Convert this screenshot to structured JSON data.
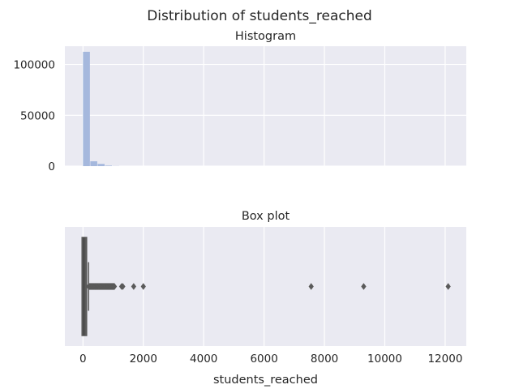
{
  "chart_data": [
    {
      "type": "histogram",
      "suptitle": "Distribution of students_reached",
      "title": "Histogram",
      "xlabel": "",
      "ylabel": "",
      "xlim": [
        -600,
        12700
      ],
      "ylim": [
        0,
        118000
      ],
      "yticks": [
        0,
        50000,
        100000
      ],
      "ytick_labels": [
        "0",
        "50000",
        "100000"
      ],
      "xticks": [
        0,
        2000,
        4000,
        6000,
        8000,
        10000,
        12000
      ],
      "xtick_labels_visible": false,
      "bin_width": 243,
      "bins": [
        {
          "x0": 0,
          "x1": 243,
          "count": 112500
        },
        {
          "x0": 243,
          "x1": 486,
          "count": 4800
        },
        {
          "x0": 486,
          "x1": 729,
          "count": 2200
        },
        {
          "x0": 729,
          "x1": 972,
          "count": 500
        },
        {
          "x0": 972,
          "x1": 1215,
          "count": 120
        }
      ],
      "bar_color": "#a5b8dd",
      "grid": true
    },
    {
      "type": "box",
      "title": "Box plot",
      "xlabel": "students_reached",
      "xlim": [
        -600,
        12700
      ],
      "xticks": [
        0,
        2000,
        4000,
        6000,
        8000,
        10000,
        12000
      ],
      "xtick_labels": [
        "0",
        "2000",
        "4000",
        "6000",
        "8000",
        "10000",
        "12000"
      ],
      "box": {
        "q1": 10,
        "median": 30,
        "q3": 80,
        "whisker_low": 0,
        "whisker_high": 185
      },
      "outliers_dense_range": [
        190,
        1050
      ],
      "outliers": [
        1280,
        1320,
        1680,
        2000,
        7560,
        9300,
        12100
      ],
      "box_color": "#5a5a5a",
      "grid": true
    }
  ],
  "colors": {
    "panel_bg": "#eaeaf2",
    "grid": "#ffffff",
    "text": "#262626"
  }
}
